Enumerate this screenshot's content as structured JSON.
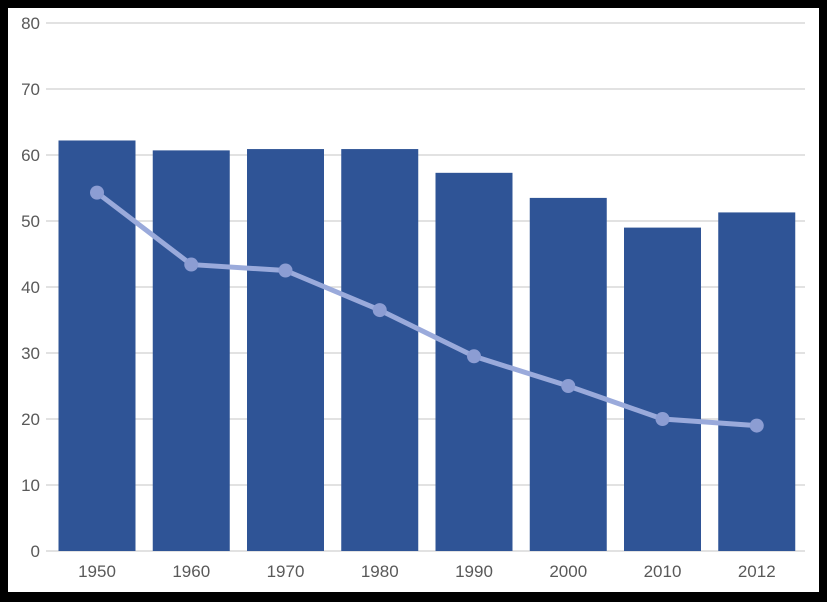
{
  "chart_data": {
    "type": "bar",
    "subtype": "bar-with-line-overlay",
    "title": "",
    "xlabel": "",
    "ylabel": "",
    "categories": [
      "1950",
      "1960",
      "1970",
      "1980",
      "1990",
      "2000",
      "2010",
      "2012"
    ],
    "series": [
      {
        "name": "bar-series",
        "type": "bar",
        "values": [
          62.2,
          60.7,
          60.9,
          60.9,
          57.3,
          53.5,
          49.0,
          51.3
        ]
      },
      {
        "name": "line-series",
        "type": "line",
        "values": [
          54.3,
          43.4,
          42.5,
          36.5,
          29.5,
          25.0,
          20.0,
          19.0
        ]
      }
    ],
    "ylim": [
      0,
      80
    ],
    "ytick_step": 10,
    "ytick_labels": [
      "0",
      "10",
      "20",
      "30",
      "40",
      "50",
      "60",
      "70",
      "80"
    ],
    "grid": true,
    "legend": false,
    "colors": {
      "bar_fill": "#2F5496",
      "line_stroke": "#9AAADB",
      "marker_fill": "#8C9DD3",
      "gridline": "#D9D9D9",
      "axis_text": "#595959",
      "plot_background": "#FFFFFF",
      "frame_border": "#000000"
    }
  }
}
